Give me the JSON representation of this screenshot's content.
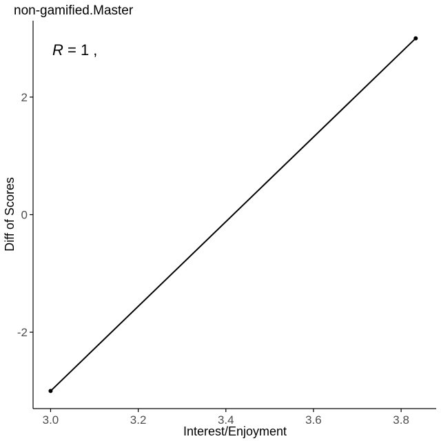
{
  "chart_data": {
    "type": "line",
    "title": "non-gamified.Master",
    "xlabel": "Interest/Enjoyment",
    "ylabel": "Diff of Scores",
    "xlim": [
      2.96,
      3.88
    ],
    "ylim": [
      -3.3,
      3.3
    ],
    "xticks": [
      3.0,
      3.2,
      3.4,
      3.6,
      3.8
    ],
    "xtick_labels": [
      "3.0",
      "3.2",
      "3.4",
      "3.6",
      "3.8"
    ],
    "yticks": [
      -2,
      0,
      2
    ],
    "ytick_labels": [
      "-2",
      "0",
      "2"
    ],
    "grid": false,
    "annotation": {
      "r_symbol": "R",
      "rest": " = 1 ,"
    },
    "series": [
      {
        "x": [
          3.0,
          3.8333
        ],
        "y": [
          -3,
          3
        ]
      }
    ],
    "colors": {
      "line": "#000000",
      "axis": "#000000",
      "tick_text": "#4d4d4d"
    }
  }
}
